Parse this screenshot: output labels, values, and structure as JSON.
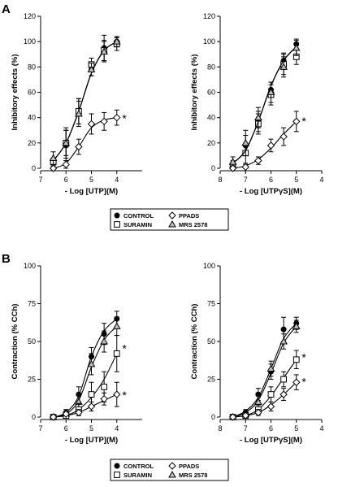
{
  "colors": {
    "ink": "#000000",
    "open_fill": "#ffffff",
    "triangle_fill": "#bfbfbf"
  },
  "panel_labels": [
    "A",
    "B"
  ],
  "significance_mark": "*",
  "legend": {
    "items": [
      {
        "label": "CONTROL",
        "marker": "filled-circle"
      },
      {
        "label": "PPADS",
        "marker": "open-diamond"
      },
      {
        "label": "SURAMIN",
        "marker": "open-square"
      },
      {
        "label": "MRS 2578",
        "marker": "open-triangle"
      }
    ]
  },
  "chart_data": [
    {
      "id": "A-left",
      "type": "line",
      "ylabel": "Inhibitory effects (%)",
      "xlabel": "- Log [UTP](M)",
      "xlim": [
        7,
        3
      ],
      "ylim": [
        0,
        120
      ],
      "x_ticks": [
        7,
        6,
        5,
        4
      ],
      "y_ticks": [
        0,
        20,
        40,
        60,
        80,
        100,
        120
      ],
      "series": [
        {
          "name": "CONTROL",
          "marker": "filled-circle",
          "x": [
            6.5,
            6,
            5.5,
            5,
            4.5,
            4
          ],
          "y": [
            5,
            18,
            45,
            78,
            95,
            100
          ],
          "err": [
            3,
            12,
            10,
            5,
            10,
            4
          ],
          "fit": [
            6,
            20,
            45,
            75,
            93,
            100
          ]
        },
        {
          "name": "SURAMIN",
          "marker": "open-square",
          "x": [
            6.5,
            6,
            5.5,
            5,
            4.5,
            4
          ],
          "y": [
            5,
            20,
            45,
            82,
            93,
            98
          ],
          "err": [
            3,
            10,
            10,
            5,
            8,
            5
          ],
          "fit": [
            6,
            20,
            45,
            75,
            93,
            100
          ]
        },
        {
          "name": "MRS 2578",
          "marker": "open-triangle",
          "x": [
            6.5,
            6,
            5.5,
            5,
            4.5,
            4
          ],
          "y": [
            8,
            20,
            43,
            78,
            92,
            100
          ],
          "err": [
            5,
            12,
            10,
            5,
            8,
            4
          ],
          "fit": [
            6,
            20,
            45,
            75,
            93,
            100
          ]
        },
        {
          "name": "PPADS",
          "marker": "open-diamond",
          "x": [
            6.5,
            6,
            5.5,
            5,
            4.5,
            4
          ],
          "y": [
            0,
            3,
            17,
            35,
            37,
            40
          ],
          "err": [
            3,
            3,
            6,
            8,
            7,
            6
          ],
          "fit": [
            0,
            4,
            17,
            32,
            38,
            40
          ]
        }
      ],
      "annotation": {
        "text": "*",
        "x": 3.7,
        "y": 40
      }
    },
    {
      "id": "A-right",
      "type": "line",
      "ylabel": "Inhibitory effects (%)",
      "xlabel": "- Log [UTPγS](M)",
      "xlim": [
        8,
        4
      ],
      "ylim": [
        0,
        120
      ],
      "x_ticks": [
        8,
        7,
        6,
        5,
        4
      ],
      "y_ticks": [
        0,
        20,
        40,
        60,
        80,
        100,
        120
      ],
      "series": [
        {
          "name": "CONTROL",
          "marker": "filled-circle",
          "x": [
            7.5,
            7,
            6.5,
            6,
            5.5,
            5
          ],
          "y": [
            3,
            18,
            37,
            62,
            85,
            98
          ],
          "err": [
            3,
            8,
            8,
            6,
            6,
            4
          ],
          "fit": [
            4,
            14,
            37,
            65,
            85,
            96
          ]
        },
        {
          "name": "SURAMIN",
          "marker": "open-square",
          "x": [
            7.5,
            7,
            6.5,
            6,
            5.5,
            5
          ],
          "y": [
            2,
            12,
            35,
            58,
            82,
            88
          ],
          "err": [
            3,
            8,
            8,
            8,
            8,
            6
          ],
          "fit": [
            4,
            14,
            37,
            65,
            85,
            96
          ]
        },
        {
          "name": "MRS 2578",
          "marker": "open-triangle",
          "x": [
            7.5,
            7,
            6.5,
            6,
            5.5,
            5
          ],
          "y": [
            5,
            20,
            40,
            60,
            80,
            95
          ],
          "err": [
            4,
            10,
            8,
            8,
            8,
            6
          ],
          "fit": [
            4,
            14,
            37,
            65,
            85,
            96
          ]
        },
        {
          "name": "PPADS",
          "marker": "open-diamond",
          "x": [
            7.5,
            7,
            6.5,
            6,
            5.5,
            5
          ],
          "y": [
            0,
            1,
            6,
            18,
            25,
            37
          ],
          "err": [
            2,
            2,
            3,
            5,
            7,
            8
          ],
          "fit": [
            0,
            2,
            7,
            16,
            27,
            37
          ]
        }
      ],
      "annotation": {
        "text": "*",
        "x": 4.7,
        "y": 38
      }
    },
    {
      "id": "B-left",
      "type": "line",
      "ylabel": "Contraction (% CCh)",
      "xlabel": "- Log [UTP](M)",
      "xlim": [
        7,
        3
      ],
      "ylim": [
        0,
        100
      ],
      "x_ticks": [
        7,
        6,
        5,
        4
      ],
      "y_ticks": [
        0,
        25,
        50,
        75,
        100
      ],
      "series": [
        {
          "name": "CONTROL",
          "marker": "filled-circle",
          "x": [
            6.5,
            6,
            5.5,
            5,
            4.5,
            4
          ],
          "y": [
            0,
            3,
            15,
            40,
            55,
            65
          ],
          "err": [
            1,
            2,
            5,
            6,
            7,
            5
          ],
          "fit": [
            0,
            3,
            14,
            40,
            57,
            65
          ]
        },
        {
          "name": "MRS 2578",
          "marker": "open-triangle",
          "x": [
            6.5,
            6,
            5.5,
            5,
            4.5,
            4
          ],
          "y": [
            0,
            2,
            10,
            35,
            50,
            60
          ],
          "err": [
            1,
            2,
            5,
            7,
            7,
            6
          ],
          "fit": [
            0,
            2,
            11,
            33,
            51,
            60
          ]
        },
        {
          "name": "SURAMIN",
          "marker": "open-square",
          "x": [
            6.5,
            6,
            5.5,
            5,
            4.5,
            4
          ],
          "y": [
            0,
            1,
            5,
            15,
            20,
            42
          ],
          "err": [
            1,
            2,
            4,
            8,
            10,
            12
          ],
          "fit": [
            0,
            1,
            5,
            13,
            25,
            42
          ]
        },
        {
          "name": "PPADS",
          "marker": "open-diamond",
          "x": [
            6.5,
            6,
            5.5,
            5,
            4.5,
            4
          ],
          "y": [
            0,
            2,
            3,
            7,
            12,
            15
          ],
          "err": [
            1,
            1,
            2,
            3,
            4,
            8
          ],
          "fit": [
            0,
            1,
            3,
            7,
            11,
            15
          ]
        }
      ],
      "annotations": [
        {
          "text": "*",
          "x": 3.7,
          "y": 46
        },
        {
          "text": "*",
          "x": 3.7,
          "y": 15
        }
      ]
    },
    {
      "id": "B-right",
      "type": "line",
      "ylabel": "Contraction (% CCh)",
      "xlabel": "- Log [UTPγS](M)",
      "xlim": [
        8,
        4
      ],
      "ylim": [
        0,
        100
      ],
      "x_ticks": [
        8,
        7,
        6,
        5,
        4
      ],
      "y_ticks": [
        0,
        25,
        50,
        75,
        100
      ],
      "series": [
        {
          "name": "CONTROL",
          "marker": "filled-circle",
          "x": [
            7.5,
            7,
            6.5,
            6,
            5.5,
            5
          ],
          "y": [
            0,
            3,
            15,
            30,
            58,
            62
          ],
          "err": [
            1,
            2,
            4,
            5,
            8,
            4
          ],
          "fit": [
            0,
            4,
            13,
            32,
            52,
            62
          ]
        },
        {
          "name": "MRS 2578",
          "marker": "open-triangle",
          "x": [
            7.5,
            7,
            6.5,
            6,
            5.5,
            5
          ],
          "y": [
            0,
            2,
            10,
            32,
            50,
            60
          ],
          "err": [
            1,
            2,
            4,
            5,
            5,
            4
          ],
          "fit": [
            0,
            3,
            11,
            29,
            49,
            60
          ]
        },
        {
          "name": "SURAMIN",
          "marker": "open-square",
          "x": [
            7.5,
            7,
            6.5,
            6,
            5.5,
            5
          ],
          "y": [
            0,
            1,
            5,
            15,
            25,
            38
          ],
          "err": [
            1,
            1,
            3,
            5,
            5,
            6
          ],
          "fit": [
            0,
            1,
            5,
            14,
            26,
            38
          ]
        },
        {
          "name": "PPADS",
          "marker": "open-diamond",
          "x": [
            7.5,
            7,
            6.5,
            6,
            5.5,
            5
          ],
          "y": [
            0,
            1,
            3,
            7,
            15,
            23
          ],
          "err": [
            1,
            1,
            2,
            3,
            4,
            5
          ],
          "fit": [
            0,
            1,
            3,
            8,
            15,
            23
          ]
        }
      ],
      "annotations": [
        {
          "text": "*",
          "x": 4.7,
          "y": 40
        },
        {
          "text": "*",
          "x": 4.7,
          "y": 24
        }
      ]
    }
  ]
}
